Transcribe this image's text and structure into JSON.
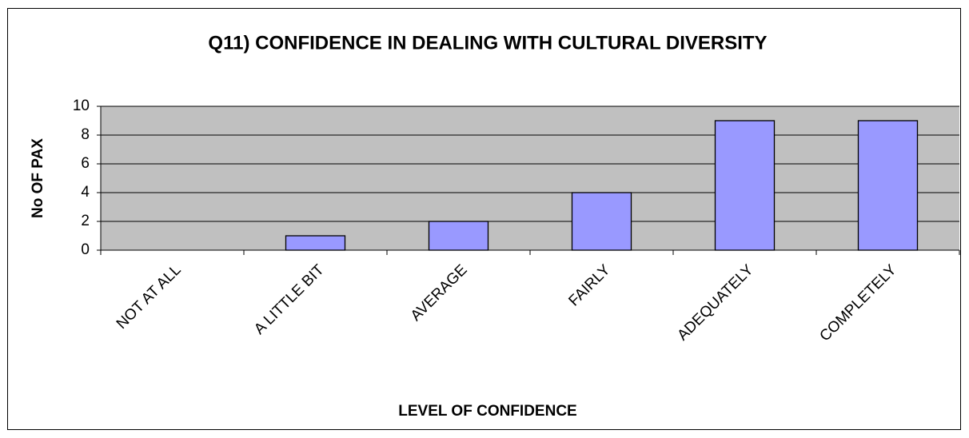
{
  "chart_data": {
    "type": "bar",
    "title": "Q11) CONFIDENCE IN DEALING WITH CULTURAL DIVERSITY",
    "x_label": "LEVEL OF CONFIDENCE",
    "y_label": "No OF PAX",
    "categories": [
      "NOT AT ALL",
      "A LITTLE BIT",
      "AVERAGE",
      "FAIRLY",
      "ADEQUATELY",
      "COMPLETELY"
    ],
    "values": [
      0,
      1,
      2,
      4,
      9,
      9
    ],
    "color": "#9999ff",
    "ylim": [
      0,
      10
    ],
    "yticks": [
      0,
      2,
      4,
      6,
      8,
      10
    ],
    "grid": true
  }
}
